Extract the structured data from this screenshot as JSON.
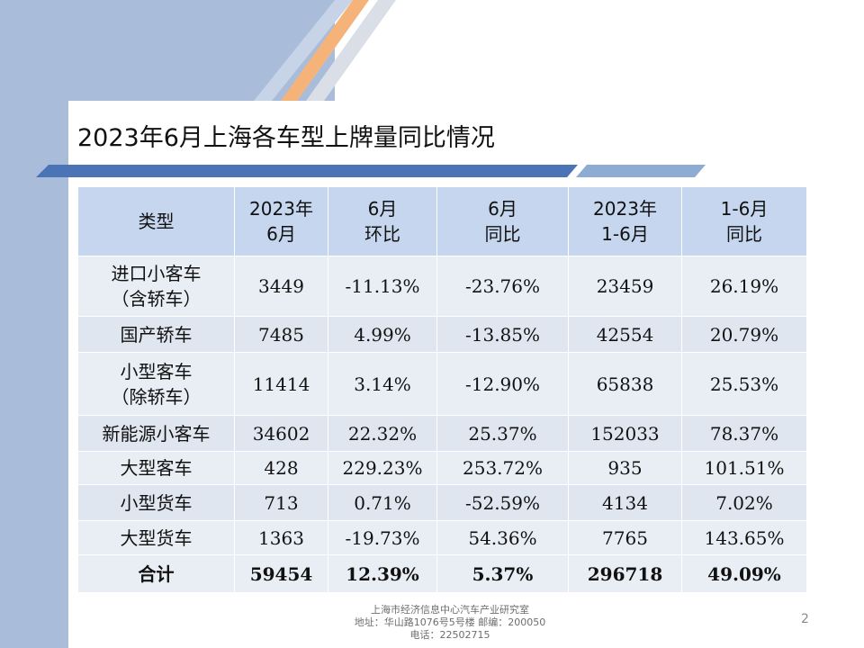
{
  "slide": {
    "title": "2023年6月上海各车型上牌量同比情况",
    "page_number": "2"
  },
  "table": {
    "headers": [
      [
        "类型"
      ],
      [
        "2023年",
        "6月"
      ],
      [
        "6月",
        "环比"
      ],
      [
        "6月",
        "同比"
      ],
      [
        "2023年",
        "1-6月"
      ],
      [
        "1-6月",
        "同比"
      ]
    ],
    "rows": [
      {
        "type": [
          "进口小客车",
          "（含轿车）"
        ],
        "jun": "3449",
        "mom": "-11.13%",
        "yoy": "-23.76%",
        "ytd": "23459",
        "ytd_yoy": "26.19%"
      },
      {
        "type": [
          "国产轿车"
        ],
        "jun": "7485",
        "mom": "4.99%",
        "yoy": "-13.85%",
        "ytd": "42554",
        "ytd_yoy": "20.79%"
      },
      {
        "type": [
          "小型客车",
          "（除轿车）"
        ],
        "jun": "11414",
        "mom": "3.14%",
        "yoy": "-12.90%",
        "ytd": "65838",
        "ytd_yoy": "25.53%"
      },
      {
        "type": [
          "新能源小客车"
        ],
        "jun": "34602",
        "mom": "22.32%",
        "yoy": "25.37%",
        "ytd": "152033",
        "ytd_yoy": "78.37%"
      },
      {
        "type": [
          "大型客车"
        ],
        "jun": "428",
        "mom": "229.23%",
        "yoy": "253.72%",
        "ytd": "935",
        "ytd_yoy": "101.51%"
      },
      {
        "type": [
          "小型货车"
        ],
        "jun": "713",
        "mom": "0.71%",
        "yoy": "-52.59%",
        "ytd": "4134",
        "ytd_yoy": "7.02%"
      },
      {
        "type": [
          "大型货车"
        ],
        "jun": "1363",
        "mom": "-19.73%",
        "yoy": "54.36%",
        "ytd": "7765",
        "ytd_yoy": "143.65%"
      }
    ],
    "total": {
      "type": "合计",
      "jun": "59454",
      "mom": "12.39%",
      "yoy": "5.37%",
      "ytd": "296718",
      "ytd_yoy": "49.09%"
    }
  },
  "footer": {
    "line1": "上海市经济信息中心汽车产业研究室",
    "line2": "地址：华山路1076号5号楼   邮编：200050",
    "line3": "电话：22502715"
  },
  "colors": {
    "header_bg": "#c5d6ee",
    "row_bg": "#e9edf4",
    "row_alt_bg": "#dfe6f0",
    "accent_orange": "#f5b37a",
    "accent_blue": "#4a74b5",
    "background_blue": "#a9bcd9"
  }
}
